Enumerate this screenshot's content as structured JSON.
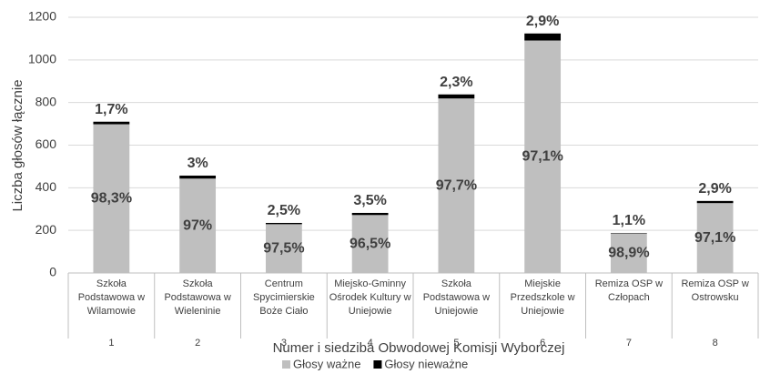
{
  "chart_data": {
    "type": "stacked_bar",
    "x_label": "Numer i siedziba Obwodowej Komisji Wyborczej",
    "y_label": "Liczba głosów łącznie",
    "categories": [
      "Szkoła Podstawowa w Wilamowie",
      "Szkoła Podstawowa w Wieleninie",
      "Centrum Spycimierskie Boże Ciało",
      "Miejsko-Gminny Ośrodek Kultury w Uniejowie",
      "Szkoła Podstawowa w Uniejowie",
      "Miejskie Przedszkole w Uniejowie",
      "Remiza OSP w Człopach",
      "Remiza OSP w Ostrowsku"
    ],
    "category_numbers": [
      1,
      2,
      3,
      4,
      5,
      6,
      7,
      8
    ],
    "series": [
      {
        "name": "Głosy ważne",
        "color": "#bfbfbf",
        "values": [
          698,
          443,
          229,
          272,
          819,
          1091,
          186,
          328
        ],
        "percentages": [
          98.3,
          97,
          97.5,
          96.5,
          97.7,
          97.1,
          98.9,
          97.1
        ],
        "percentage_labels": [
          "98,3%",
          "97%",
          "97,5%",
          "96,5%",
          "97,7%",
          "97,1%",
          "98,9%",
          "97,1%"
        ]
      },
      {
        "name": "Głosy nieważne",
        "color": "#000000",
        "values": [
          12,
          14,
          6,
          10,
          19,
          33,
          2,
          10
        ],
        "percentages": [
          1.7,
          3,
          2.5,
          3.5,
          2.3,
          2.9,
          1.1,
          2.9
        ],
        "percentage_labels": [
          "1,7%",
          "3%",
          "2,5%",
          "3,5%",
          "2,3%",
          "2,9%",
          "1,1%",
          "2,9%"
        ]
      }
    ],
    "ylim": [
      0,
      1200
    ],
    "yticks": [
      0,
      200,
      400,
      600,
      800,
      1000,
      1200
    ],
    "grid": true,
    "legend": "bottom"
  }
}
